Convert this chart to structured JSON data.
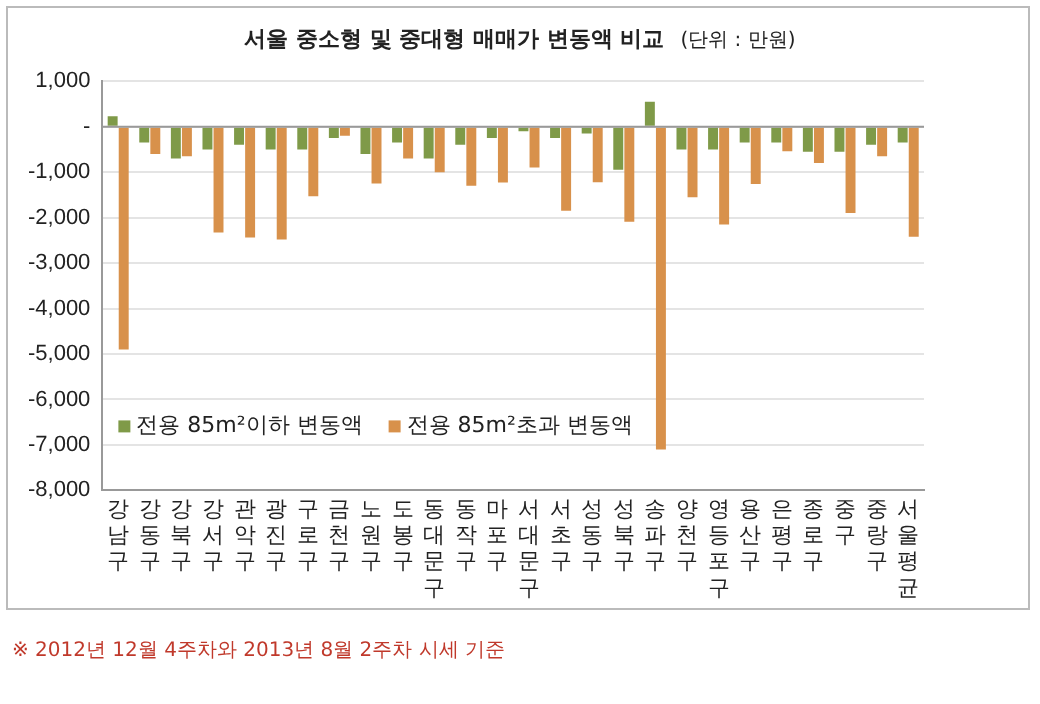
{
  "chart_data": {
    "type": "bar",
    "title": "서울 중소형 및 중대형 매매가 변동액 비교",
    "subtitle": "(단위 : 만원)",
    "categories": [
      "강남구",
      "강동구",
      "강북구",
      "강서구",
      "관악구",
      "광진구",
      "구로구",
      "금천구",
      "노원구",
      "도봉구",
      "동대문구",
      "동작구",
      "마포구",
      "서대문구",
      "서초구",
      "성동구",
      "성북구",
      "송파구",
      "양천구",
      "영등포구",
      "용산구",
      "은평구",
      "종로구",
      "중구",
      "중랑구",
      "서울 평균"
    ],
    "series": [
      {
        "name": "전용 85m²이하 변동액",
        "color": "#7f9a48",
        "values": [
          230,
          -350,
          -700,
          -500,
          -400,
          -500,
          -500,
          -250,
          -600,
          -350,
          -700,
          -400,
          -250,
          -100,
          -250,
          -150,
          -950,
          550,
          -500,
          -500,
          -350,
          -350,
          -550,
          -550,
          -400,
          -350
        ]
      },
      {
        "name": "전용 85m²초과 변동액",
        "color": "#d8914b",
        "values": [
          -4900,
          -600,
          -650,
          -2330,
          -2440,
          -2480,
          -1530,
          -200,
          -1250,
          -700,
          -1000,
          -1300,
          -1230,
          -900,
          -1850,
          -1220,
          -2090,
          -7100,
          -1550,
          -2150,
          -1260,
          -540,
          -800,
          -1900,
          -650,
          -2420
        ]
      }
    ],
    "ylim": [
      -8000,
      1000
    ],
    "yticks": [
      {
        "value": 1000,
        "label": "1,000"
      },
      {
        "value": 0,
        "label": "-"
      },
      {
        "value": -1000,
        "label": "-1,000"
      },
      {
        "value": -2000,
        "label": "-2,000"
      },
      {
        "value": -3000,
        "label": "-3,000"
      },
      {
        "value": -4000,
        "label": "-4,000"
      },
      {
        "value": -5000,
        "label": "-5,000"
      },
      {
        "value": -6000,
        "label": "-6,000"
      },
      {
        "value": -7000,
        "label": "-7,000"
      },
      {
        "value": -8000,
        "label": "-8,000"
      }
    ],
    "grid": "y",
    "legend": "bottom left",
    "annotations": [
      "※ 2012년 12월 4주차와 2013년 8월 2주차 시세 기준"
    ]
  }
}
